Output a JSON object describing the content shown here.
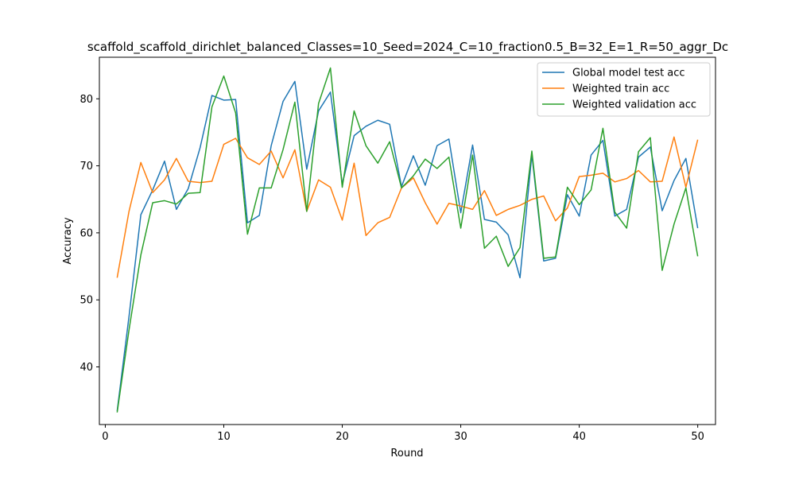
{
  "chart_data": {
    "type": "line",
    "title": "scaffold_scaffold_dirichlet_balanced_Classes=10_Seed=2024_C=10_fraction0.5_B=32_E=1_R=50_aggr_Dc",
    "xlabel": "Round",
    "ylabel": "Accuracy",
    "xlim": [
      -0.5,
      51.5
    ],
    "ylim": [
      31.4,
      86.2
    ],
    "xticks": [
      0,
      10,
      20,
      30,
      40,
      50
    ],
    "yticks": [
      40,
      50,
      60,
      70,
      80
    ],
    "grid": false,
    "legend_position": "top-right",
    "x": [
      1,
      2,
      3,
      4,
      5,
      6,
      7,
      8,
      9,
      10,
      11,
      12,
      13,
      14,
      15,
      16,
      17,
      18,
      19,
      20,
      21,
      22,
      23,
      24,
      25,
      26,
      27,
      28,
      29,
      30,
      31,
      32,
      33,
      34,
      35,
      36,
      37,
      38,
      39,
      40,
      41,
      42,
      43,
      44,
      45,
      46,
      47,
      48,
      49,
      50
    ],
    "series": [
      {
        "name": "Global model test acc",
        "color": "#1f77b4",
        "values": [
          33.4,
          47.5,
          62.7,
          66.4,
          70.7,
          63.5,
          66.6,
          72.7,
          80.5,
          79.8,
          79.9,
          61.5,
          62.6,
          73.0,
          79.6,
          82.6,
          69.5,
          78.2,
          81.0,
          67.3,
          74.5,
          75.9,
          76.8,
          76.2,
          66.9,
          71.5,
          67.1,
          73.0,
          74.0,
          63.0,
          73.1,
          62.0,
          61.6,
          59.7,
          53.3,
          71.7,
          55.8,
          56.2,
          65.7,
          62.5,
          71.6,
          73.8,
          62.5,
          63.5,
          71.3,
          72.8,
          63.3,
          67.8,
          71.1,
          60.7
        ]
      },
      {
        "name": "Weighted train acc",
        "color": "#ff7f0e",
        "values": [
          53.3,
          63.2,
          70.5,
          66.0,
          67.9,
          71.1,
          67.7,
          67.5,
          67.7,
          73.2,
          74.1,
          71.2,
          70.2,
          72.2,
          68.2,
          72.4,
          63.2,
          67.9,
          66.8,
          61.9,
          70.4,
          59.6,
          61.5,
          62.3,
          66.7,
          68.2,
          64.5,
          61.3,
          64.4,
          64.0,
          63.5,
          66.3,
          62.6,
          63.5,
          64.1,
          65.0,
          65.5,
          61.8,
          63.7,
          68.4,
          68.6,
          68.9,
          67.6,
          68.1,
          69.3,
          67.6,
          67.7,
          74.3,
          66.8,
          73.9
        ]
      },
      {
        "name": "Weighted validation acc",
        "color": "#2ca02c",
        "values": [
          33.2,
          45.5,
          56.7,
          64.5,
          64.8,
          64.3,
          65.9,
          66.0,
          78.8,
          83.4,
          77.9,
          59.8,
          66.7,
          66.7,
          72.4,
          79.5,
          63.2,
          79.3,
          84.6,
          66.8,
          78.2,
          73.0,
          70.4,
          73.6,
          66.7,
          68.5,
          71.0,
          69.6,
          71.3,
          60.7,
          71.6,
          57.7,
          59.5,
          55.0,
          57.8,
          72.2,
          56.2,
          56.4,
          66.8,
          64.2,
          66.4,
          75.6,
          63.1,
          60.7,
          72.1,
          74.2,
          54.4,
          61.3,
          66.7,
          56.5
        ]
      }
    ]
  }
}
